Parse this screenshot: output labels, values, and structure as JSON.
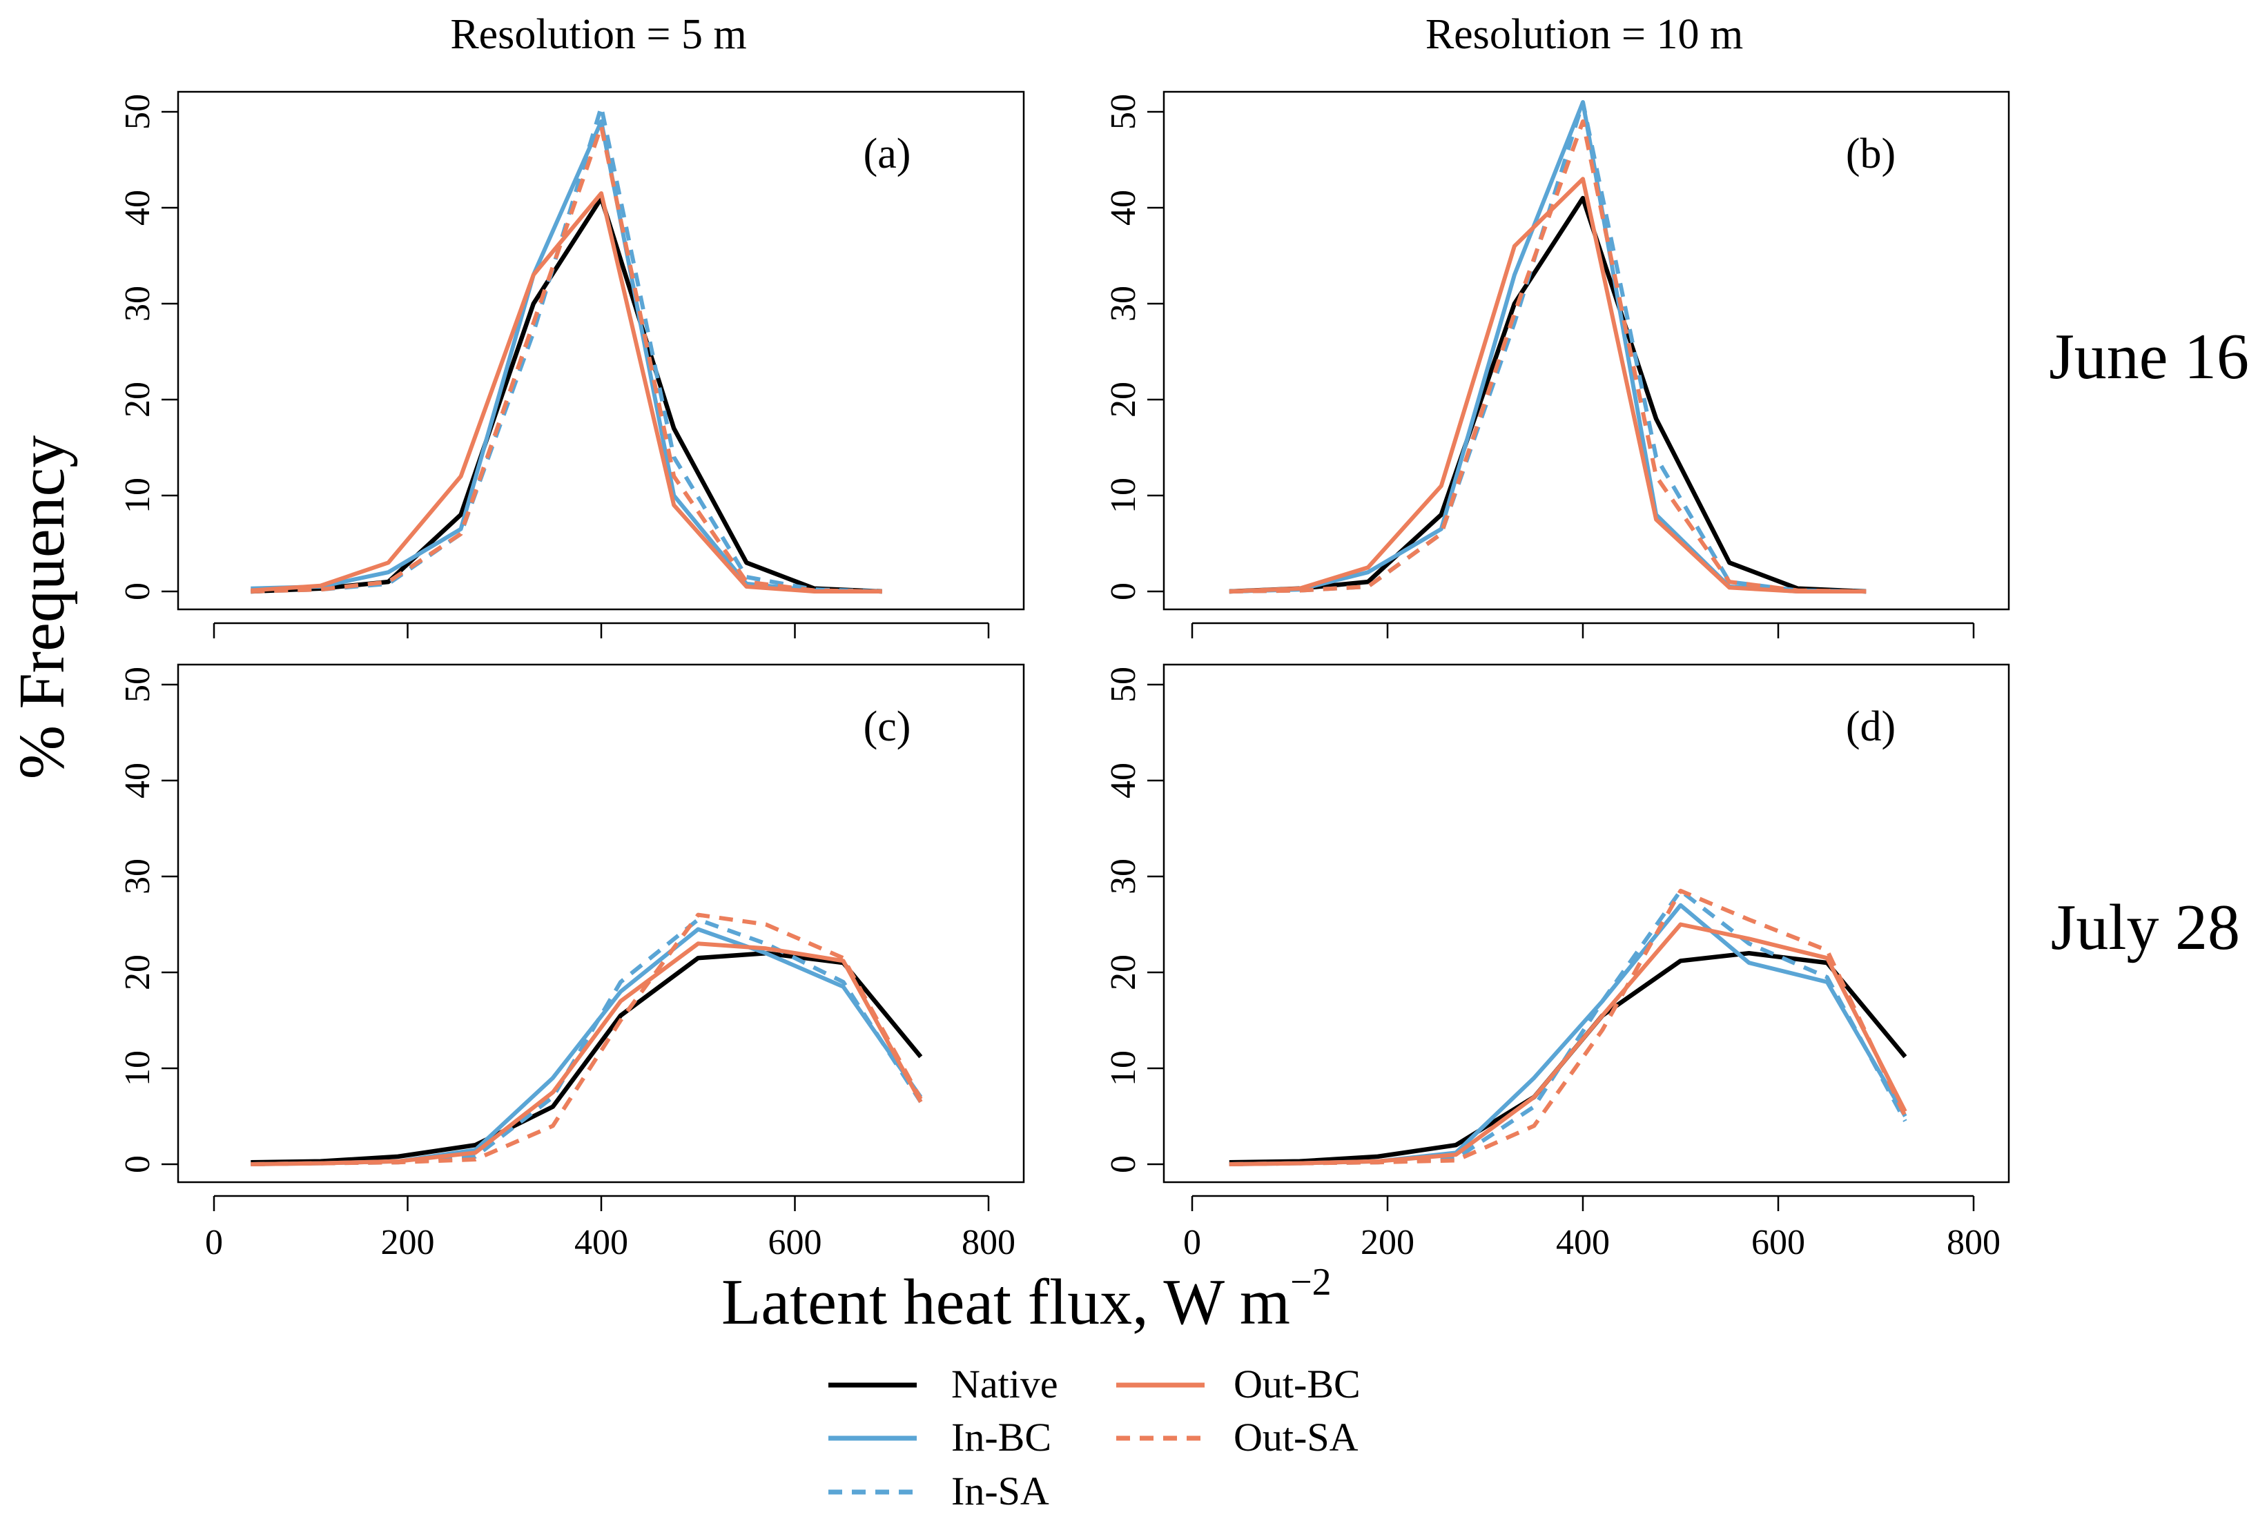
{
  "chart_data": {
    "type": "line",
    "xlabel": "Latent heat flux, W m",
    "xlabel_exponent": "−2",
    "ylabel": "% Frequency",
    "col_titles": [
      "Resolution = 5 m",
      "Resolution = 10 m"
    ],
    "row_labels": [
      "June 16",
      "July 28"
    ],
    "xlim": [
      0,
      800
    ],
    "ylim": [
      0,
      50
    ],
    "xticks": [
      0,
      200,
      400,
      600,
      800
    ],
    "yticks": [
      0,
      10,
      20,
      30,
      40,
      50
    ],
    "x": [
      38,
      110,
      180,
      255,
      330,
      400,
      475,
      550,
      620,
      690
    ],
    "x_july": [
      38,
      110,
      190,
      270,
      350,
      420,
      500,
      570,
      650,
      730
    ],
    "series_styles": [
      {
        "name": "Native",
        "color": "#000000",
        "dash": "solid"
      },
      {
        "name": "In-BC",
        "color": "#5aa5d5",
        "dash": "solid"
      },
      {
        "name": "In-SA",
        "color": "#5aa5d5",
        "dash": "dashed"
      },
      {
        "name": "Out-BC",
        "color": "#ec7e5b",
        "dash": "solid"
      },
      {
        "name": "Out-SA",
        "color": "#ec7e5b",
        "dash": "dashed"
      }
    ],
    "panels": [
      {
        "label": "(a)",
        "row": 0,
        "col": 0,
        "xkey": "x",
        "series": [
          {
            "name": "Native",
            "values": [
              0,
              0.3,
              1,
              8,
              30,
              41,
              17,
              3,
              0.3,
              0
            ]
          },
          {
            "name": "In-BC",
            "values": [
              0.3,
              0.5,
              2,
              6.5,
              33,
              49,
              10,
              0.8,
              0.1,
              0
            ]
          },
          {
            "name": "In-SA",
            "values": [
              0,
              0.2,
              0.8,
              6,
              27,
              50.5,
              14,
              1.5,
              0.2,
              0
            ]
          },
          {
            "name": "Out-BC",
            "values": [
              0.1,
              0.6,
              3,
              12,
              33,
              41.5,
              9,
              0.5,
              0,
              0
            ]
          },
          {
            "name": "Out-SA",
            "values": [
              0,
              0.2,
              1,
              6,
              28,
              48.5,
              12,
              1,
              0.1,
              0
            ]
          }
        ]
      },
      {
        "label": "(b)",
        "row": 0,
        "col": 1,
        "xkey": "x",
        "series": [
          {
            "name": "Native",
            "values": [
              0,
              0.3,
              1,
              8,
              30,
              41,
              18,
              3,
              0.3,
              0
            ]
          },
          {
            "name": "In-BC",
            "values": [
              0,
              0.2,
              2,
              6.5,
              33,
              51,
              8,
              0.5,
              0,
              0
            ]
          },
          {
            "name": "In-SA",
            "values": [
              0,
              0.1,
              0.5,
              6,
              28,
              51,
              14,
              1,
              0.1,
              0
            ]
          },
          {
            "name": "Out-BC",
            "values": [
              0,
              0.3,
              2.5,
              11,
              36,
              43,
              7.5,
              0.4,
              0,
              0
            ]
          },
          {
            "name": "Out-SA",
            "values": [
              0,
              0.1,
              0.5,
              6,
              29,
              49,
              12,
              1,
              0.1,
              0
            ]
          }
        ]
      },
      {
        "label": "(c)",
        "row": 1,
        "col": 0,
        "xkey": "x_july",
        "series": [
          {
            "name": "Native",
            "values": [
              0.2,
              0.3,
              0.8,
              2,
              6,
              15.5,
              21.5,
              22,
              21,
              11.2
            ]
          },
          {
            "name": "In-BC",
            "values": [
              0,
              0.1,
              0.3,
              1.5,
              9,
              18,
              24.5,
              22,
              18.5,
              7
            ]
          },
          {
            "name": "In-SA",
            "values": [
              0,
              0.1,
              0.2,
              0.8,
              7,
              19,
              25.5,
              23,
              19,
              6.5
            ]
          },
          {
            "name": "Out-BC",
            "values": [
              0,
              0.1,
              0.3,
              1.2,
              7.5,
              17,
              23,
              22.5,
              21.2,
              6.5
            ]
          },
          {
            "name": "Out-SA",
            "values": [
              0,
              0.1,
              0.2,
              0.5,
              4,
              15,
              26,
              25,
              21.5,
              6.8
            ]
          }
        ]
      },
      {
        "label": "(d)",
        "row": 1,
        "col": 1,
        "xkey": "x_july",
        "series": [
          {
            "name": "Native",
            "values": [
              0.2,
              0.3,
              0.8,
              2,
              7,
              15.5,
              21.2,
              22,
              21,
              11.2
            ]
          },
          {
            "name": "In-BC",
            "values": [
              0,
              0.1,
              0.3,
              1.2,
              9,
              17,
              27,
              21,
              19,
              5
            ]
          },
          {
            "name": "In-SA",
            "values": [
              0,
              0.1,
              0.2,
              0.6,
              6,
              17,
              28.5,
              23,
              19.5,
              4.5
            ]
          },
          {
            "name": "Out-BC",
            "values": [
              0,
              0.1,
              0.3,
              1,
              7,
              15.5,
              25,
              23.5,
              21.5,
              5.5
            ]
          },
          {
            "name": "Out-SA",
            "values": [
              0,
              0.1,
              0.2,
              0.4,
              4,
              14,
              28.5,
              25.5,
              22.3,
              5
            ]
          }
        ]
      }
    ],
    "legend": {
      "placement": "bottom-center",
      "entries": [
        "Native",
        "In-BC",
        "In-SA",
        "Out-BC",
        "Out-SA"
      ]
    }
  }
}
